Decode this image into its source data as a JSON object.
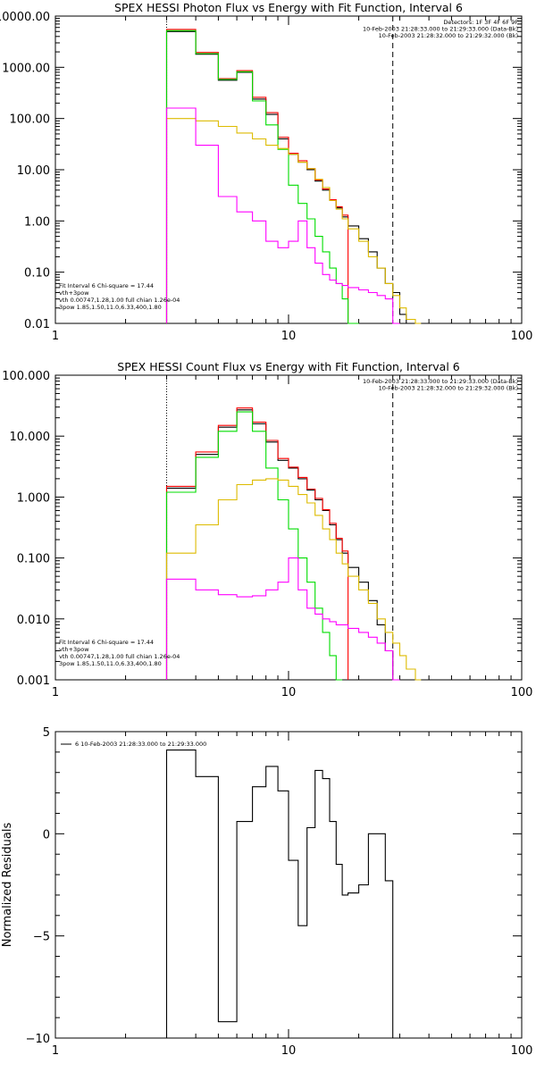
{
  "chart_data": [
    {
      "type": "line",
      "title": "SPEX HESSI Photon Flux vs Energy with Fit Function, Interval 6",
      "xscale": "log",
      "yscale": "log",
      "xlim": [
        1,
        100
      ],
      "ylim": [
        0.01,
        10000
      ],
      "xticks": [
        {
          "v": 1,
          "label": "1"
        },
        {
          "v": 10,
          "label": "10"
        },
        {
          "v": 100,
          "label": "100"
        }
      ],
      "yticks": [
        {
          "v": 0.01,
          "label": "0.01"
        },
        {
          "v": 0.1,
          "label": "0.10"
        },
        {
          "v": 1,
          "label": "1.00"
        },
        {
          "v": 10,
          "label": "10.00"
        },
        {
          "v": 100,
          "label": "100.00"
        },
        {
          "v": 1000,
          "label": "1000.00"
        },
        {
          "v": 10000,
          "label": "10000.00"
        }
      ],
      "vlines": [
        {
          "x": 3,
          "style": "dotted"
        },
        {
          "x": 28,
          "style": "dashed"
        }
      ],
      "header_lines": [
        "Detectors: 1F 3F 4F 6F 9F",
        "10-Feb-2003 21:28:33.000 to 21:29:33.000 (Data-Bk)",
        "10-Feb-2003 21:28:32.000 to 21:29:32.000 (Bk)"
      ],
      "fit_lines": [
        "Fit Interval  6    Chi-square = 17.44",
        "vth+3pow",
        "vth 0.00747,1.28,1.00  full chian 1.26e-04",
        "3pow  1.85,1.50,11.0,6.33,400,1.80"
      ],
      "edges": [
        3,
        4,
        5,
        6,
        7,
        8,
        9,
        10,
        11,
        12,
        13,
        14,
        15,
        16,
        17,
        18,
        20,
        22,
        24,
        26,
        28,
        30,
        32,
        35,
        37
      ],
      "series": [
        {
          "color": "#000000",
          "values": [
            5000,
            1800,
            560,
            800,
            240,
            120,
            40,
            20,
            14,
            10,
            6,
            4,
            2.5,
            1.8,
            1.2,
            0.8,
            0.45,
            0.25,
            0.12,
            0.06,
            0.04,
            0.015
          ]
        },
        {
          "color": "#ff0000",
          "values": [
            5500,
            1950,
            600,
            860,
            260,
            130,
            43,
            21,
            15,
            10.5,
            6.3,
            4.2,
            2.6,
            1.9,
            1.3
          ]
        },
        {
          "color": "#00dd00",
          "values": [
            5200,
            1850,
            580,
            820,
            220,
            75,
            25,
            5,
            2.2,
            1.1,
            0.5,
            0.25,
            0.12,
            0.06,
            0.03,
            0.01
          ]
        },
        {
          "color": "#ddbb00",
          "values": [
            100,
            90,
            70,
            52,
            40,
            30,
            26,
            20,
            14,
            10.5,
            6.5,
            4.5,
            2.5,
            1.7,
            1.1,
            0.7,
            0.4,
            0.2,
            0.12,
            0.06,
            0.035,
            0.02,
            0.012,
            0.01
          ]
        },
        {
          "color": "#ff00ff",
          "values": [
            160,
            30,
            3,
            1.5,
            1,
            0.4,
            0.3,
            0.4,
            1,
            0.3,
            0.15,
            0.09,
            0.07,
            0.06,
            0.055,
            0.05,
            0.045,
            0.04,
            0.035,
            0.03,
            0.01
          ]
        }
      ]
    },
    {
      "type": "line",
      "title": "SPEX HESSI Count Flux vs Energy with Fit Function, Interval 6",
      "xscale": "log",
      "yscale": "log",
      "xlim": [
        1,
        100
      ],
      "ylim": [
        0.001,
        100
      ],
      "xticks": [
        {
          "v": 1,
          "label": "1"
        },
        {
          "v": 10,
          "label": "10"
        },
        {
          "v": 100,
          "label": "100"
        }
      ],
      "yticks": [
        {
          "v": 0.001,
          "label": "0.001"
        },
        {
          "v": 0.01,
          "label": "0.010"
        },
        {
          "v": 0.1,
          "label": "0.100"
        },
        {
          "v": 1,
          "label": "1.000"
        },
        {
          "v": 10,
          "label": "10.000"
        },
        {
          "v": 100,
          "label": "100.000"
        }
      ],
      "vlines": [
        {
          "x": 3,
          "style": "dotted"
        },
        {
          "x": 28,
          "style": "dashed"
        }
      ],
      "header_lines": [
        "10-Feb-2003 21:28:33.000 to 21:29:33.000 (Data-Bk)",
        "10-Feb-2003 21:28:32.000 to 21:29:32.000 (Bk)"
      ],
      "fit_lines": [
        "Fit Interval  6    Chi-square = 17.44",
        "vth+3pow",
        "vth 0.00747,1.28,1.00  full chian 1.26e-04",
        "3pow  1.85,1.50,11.0,6.33,400,1.80"
      ],
      "edges": [
        3,
        4,
        5,
        6,
        7,
        8,
        9,
        10,
        11,
        12,
        13,
        14,
        15,
        16,
        17,
        18,
        20,
        22,
        24,
        26,
        28,
        30,
        32,
        35,
        37
      ],
      "series": [
        {
          "color": "#000000",
          "values": [
            1.4,
            5,
            14,
            27,
            16,
            8,
            4,
            3,
            2,
            1.3,
            0.9,
            0.6,
            0.35,
            0.2,
            0.12,
            0.07,
            0.04,
            0.02,
            0.008,
            0.003
          ]
        },
        {
          "color": "#ff0000",
          "values": [
            1.5,
            5.5,
            15,
            29,
            17,
            8.5,
            4.3,
            3.1,
            2.1,
            1.35,
            0.95,
            0.62,
            0.37,
            0.21,
            0.13
          ]
        },
        {
          "color": "#00dd00",
          "values": [
            1.2,
            4.5,
            12,
            25,
            12,
            3,
            0.9,
            0.3,
            0.1,
            0.04,
            0.015,
            0.006,
            0.0025,
            0.001
          ]
        },
        {
          "color": "#ddbb00",
          "values": [
            0.12,
            0.35,
            0.9,
            1.6,
            1.9,
            2,
            1.9,
            1.5,
            1.1,
            0.8,
            0.5,
            0.3,
            0.2,
            0.12,
            0.08,
            0.05,
            0.03,
            0.018,
            0.01,
            0.006,
            0.004,
            0.0025,
            0.0015,
            0.001
          ]
        },
        {
          "color": "#ff00ff",
          "values": [
            0.045,
            0.03,
            0.025,
            0.023,
            0.024,
            0.03,
            0.04,
            0.1,
            0.03,
            0.015,
            0.012,
            0.01,
            0.009,
            0.008,
            0.008,
            0.007,
            0.006,
            0.005,
            0.004,
            0.003,
            0.001
          ]
        }
      ]
    },
    {
      "type": "line",
      "title": "",
      "xscale": "log",
      "yscale": "linear",
      "xlim": [
        1,
        100
      ],
      "ylim": [
        -10,
        5
      ],
      "ylabel": "Normalized Residuals",
      "xticks": [
        {
          "v": 1,
          "label": "1"
        },
        {
          "v": 10,
          "label": "10"
        },
        {
          "v": 100,
          "label": "100"
        }
      ],
      "yticks": [
        {
          "v": -10,
          "label": "−10"
        },
        {
          "v": -5,
          "label": "−5"
        },
        {
          "v": 0,
          "label": "0"
        },
        {
          "v": 5,
          "label": "5"
        }
      ],
      "legend": "6  10-Feb-2003 21:28:33.000 to 21:29:33.000",
      "edges": [
        3,
        4,
        5,
        6,
        7,
        8,
        9,
        10,
        11,
        12,
        13,
        14,
        15,
        16,
        17,
        18,
        20,
        22,
        24,
        26,
        28
      ],
      "series": [
        {
          "color": "#000000",
          "values": [
            4.1,
            2.8,
            -9.2,
            0.6,
            2.3,
            3.3,
            2.1,
            -1.3,
            -4.5,
            0.3,
            3.1,
            2.7,
            0.6,
            -1.5,
            -3.0,
            -2.9,
            -2.5,
            0.0,
            0.0,
            -2.3
          ]
        }
      ]
    }
  ]
}
